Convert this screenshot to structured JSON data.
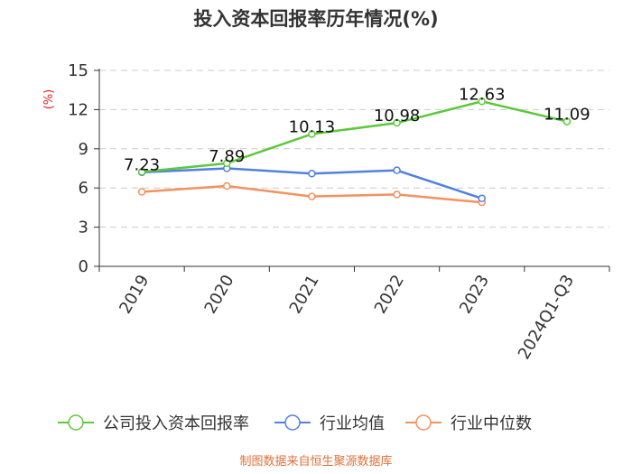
{
  "title": "投入资本回报率历年情况(%)",
  "source": "制图数据来自恒生聚源数据库",
  "chart_data": {
    "type": "line",
    "title": "投入资本回报率历年情况(%)",
    "ylabel": "(%)",
    "ylim": [
      0,
      15
    ],
    "yticks": [
      0,
      3,
      6,
      9,
      12,
      15
    ],
    "categories": [
      "2019",
      "2020",
      "2021",
      "2022",
      "2023",
      "2024Q1-Q3"
    ],
    "grid": true,
    "legend_position": "bottom",
    "series": [
      {
        "name": "公司投入资本回报率",
        "color": "#5cc93a",
        "values": [
          7.23,
          7.89,
          10.13,
          10.98,
          12.63,
          11.09
        ],
        "labels": [
          "7.23",
          "7.89",
          "10.13",
          "10.98",
          "12.63",
          "11.09"
        ]
      },
      {
        "name": "行业均值",
        "color": "#5080e0",
        "values": [
          7.2,
          7.5,
          7.1,
          7.35,
          5.2,
          null
        ]
      },
      {
        "name": "行业中位数",
        "color": "#f4915e",
        "values": [
          5.7,
          6.15,
          5.35,
          5.5,
          4.9,
          null
        ]
      }
    ]
  }
}
